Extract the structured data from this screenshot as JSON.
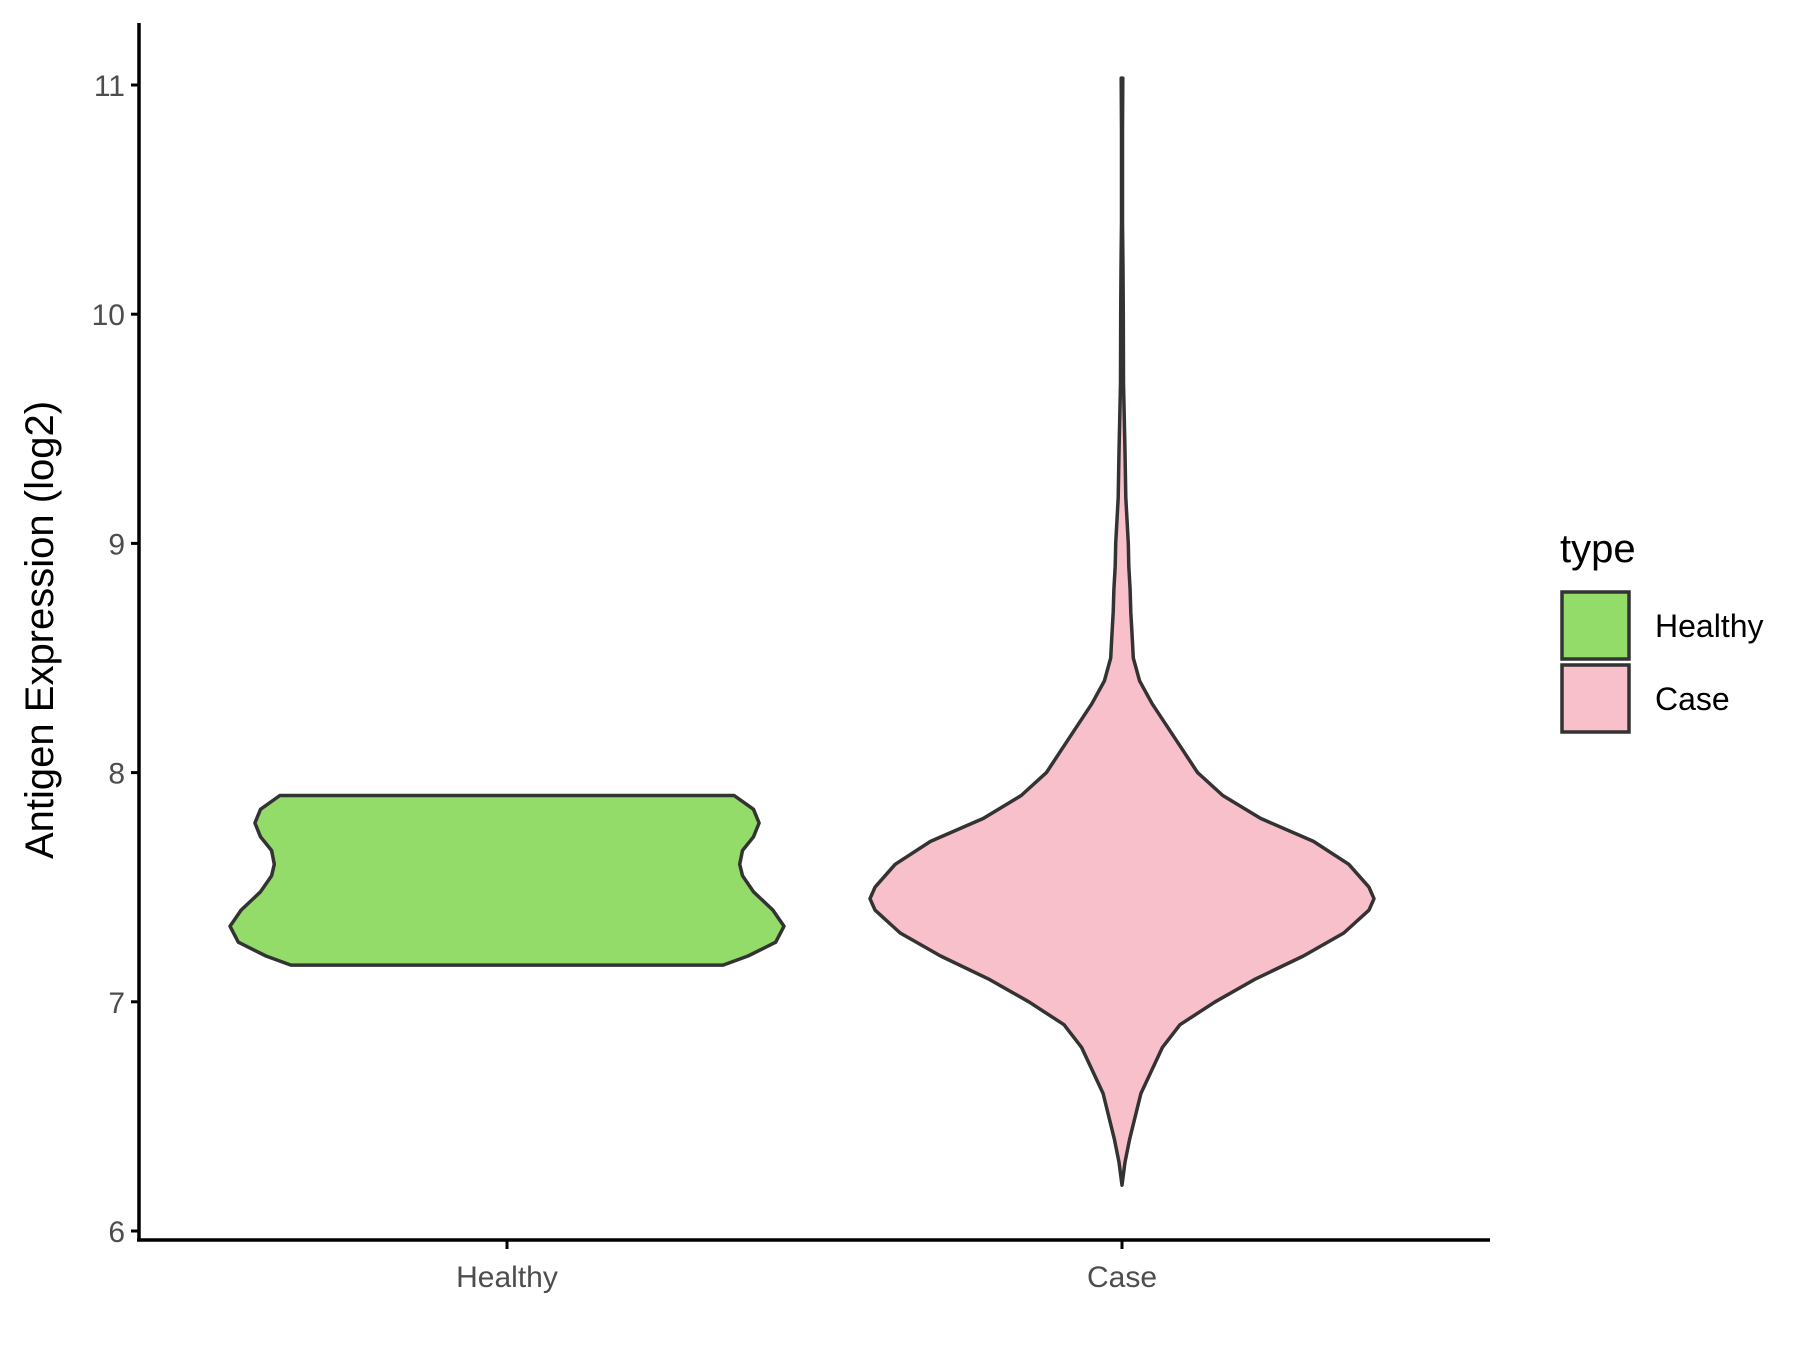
{
  "chart_data": {
    "type": "violin",
    "title": "",
    "xlabel": "",
    "ylabel": "Antigen Expression (log2)",
    "categories": [
      "Healthy",
      "Case"
    ],
    "ylim": [
      6,
      11
    ],
    "yticks": [
      "6",
      "7",
      "8",
      "9",
      "10",
      "11"
    ],
    "grid": false,
    "legend": {
      "title": "type",
      "position": "right",
      "entries": [
        {
          "label": "Healthy",
          "color": "#93DC6A"
        },
        {
          "label": "Case",
          "color": "#F8C0CB"
        }
      ]
    },
    "series": [
      {
        "name": "Healthy",
        "color": "#93DC6A",
        "min": 7.16,
        "max": 7.9,
        "density": [
          [
            7.16,
            0.78
          ],
          [
            7.2,
            0.87
          ],
          [
            7.26,
            0.97
          ],
          [
            7.33,
            1.0
          ],
          [
            7.4,
            0.96
          ],
          [
            7.48,
            0.89
          ],
          [
            7.55,
            0.85
          ],
          [
            7.6,
            0.84
          ],
          [
            7.66,
            0.85
          ],
          [
            7.72,
            0.89
          ],
          [
            7.78,
            0.91
          ],
          [
            7.84,
            0.89
          ],
          [
            7.9,
            0.82
          ]
        ]
      },
      {
        "name": "Case",
        "color": "#F8C0CB",
        "min": 6.2,
        "max": 11.03,
        "density": [
          [
            6.2,
            0.0
          ],
          [
            6.3,
            0.012
          ],
          [
            6.4,
            0.03
          ],
          [
            6.6,
            0.075
          ],
          [
            6.8,
            0.16
          ],
          [
            6.9,
            0.23
          ],
          [
            7.0,
            0.37
          ],
          [
            7.1,
            0.53
          ],
          [
            7.2,
            0.72
          ],
          [
            7.3,
            0.88
          ],
          [
            7.4,
            0.98
          ],
          [
            7.45,
            1.0
          ],
          [
            7.5,
            0.98
          ],
          [
            7.6,
            0.9
          ],
          [
            7.7,
            0.76
          ],
          [
            7.8,
            0.55
          ],
          [
            7.9,
            0.4
          ],
          [
            8.0,
            0.3
          ],
          [
            8.1,
            0.24
          ],
          [
            8.2,
            0.18
          ],
          [
            8.3,
            0.12
          ],
          [
            8.4,
            0.07
          ],
          [
            8.5,
            0.045
          ],
          [
            8.6,
            0.04
          ],
          [
            8.7,
            0.035
          ],
          [
            8.8,
            0.032
          ],
          [
            8.9,
            0.027
          ],
          [
            9.0,
            0.025
          ],
          [
            9.2,
            0.015
          ],
          [
            9.4,
            0.012
          ],
          [
            9.5,
            0.01
          ],
          [
            9.7,
            0.006
          ],
          [
            10.0,
            0.005
          ],
          [
            10.2,
            0.004
          ],
          [
            10.4,
            0.002
          ],
          [
            10.8,
            0.002
          ],
          [
            11.03,
            0.003
          ]
        ]
      }
    ]
  }
}
